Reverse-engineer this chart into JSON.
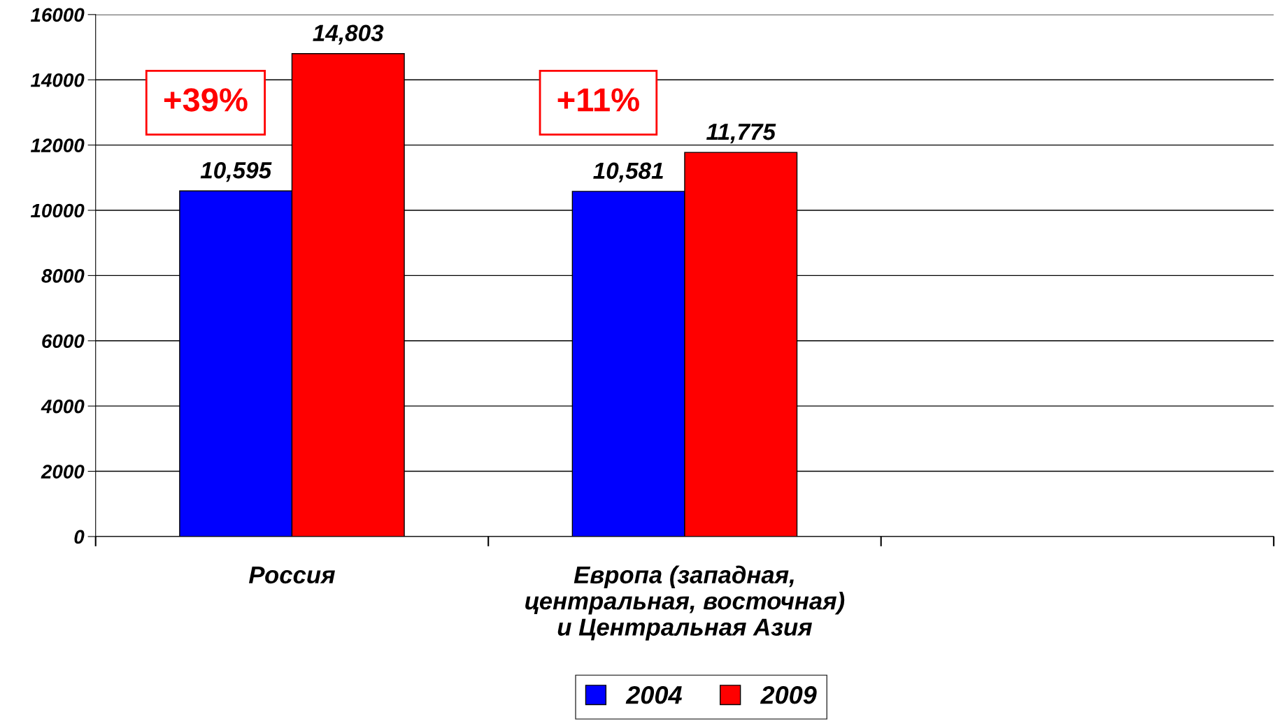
{
  "chart_data": {
    "type": "bar",
    "categories": [
      "Россия",
      "Европа (западная,\nцентральная, восточная)\nи Центральная Азия",
      null
    ],
    "series": [
      {
        "name": "2004",
        "color": "#0000ff",
        "values": [
          10595,
          10581,
          null
        ],
        "value_labels": [
          "10,595",
          "10,581",
          null
        ]
      },
      {
        "name": "2009",
        "color": "#ff0000",
        "values": [
          14803,
          11775,
          null
        ],
        "value_labels": [
          "14,803",
          "11,775",
          null
        ]
      }
    ],
    "annotations": [
      "+39%",
      "+11%"
    ],
    "ylim": [
      0,
      16000
    ],
    "yticks": [
      0,
      2000,
      4000,
      6000,
      8000,
      10000,
      12000,
      14000,
      16000
    ],
    "grid": "y",
    "legend": "bottom"
  }
}
